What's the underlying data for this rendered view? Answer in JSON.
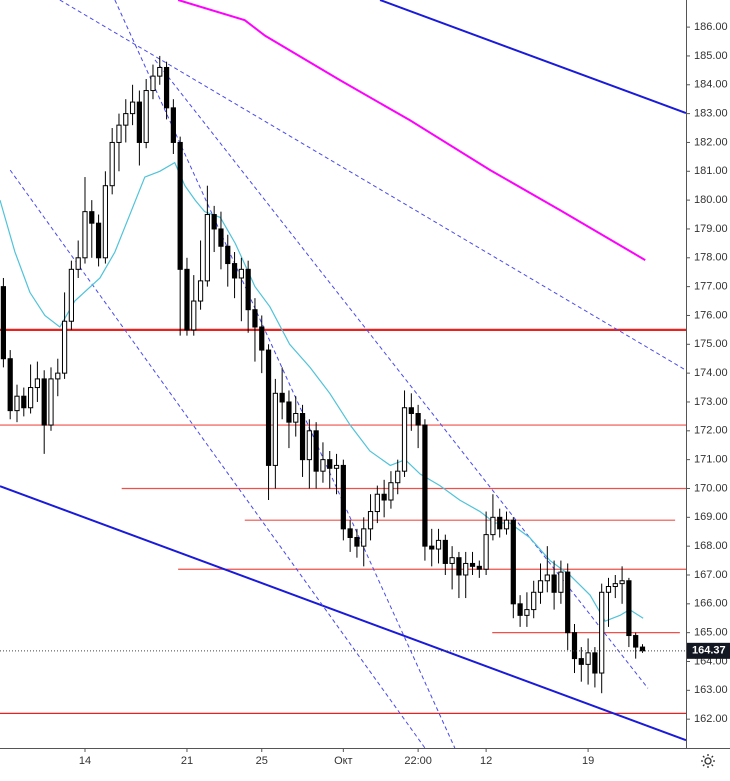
{
  "chart_data": {
    "type": "candlestick",
    "x": [
      0,
      1,
      2,
      3,
      4,
      5,
      6,
      7,
      8,
      9,
      10,
      11,
      12,
      13,
      14,
      15,
      16,
      17,
      18,
      19,
      20,
      21,
      22,
      23,
      24,
      25,
      26,
      27,
      28,
      29,
      30,
      31,
      32,
      33,
      34,
      35,
      36,
      37,
      38,
      39,
      40,
      41,
      42,
      43,
      44,
      45,
      46,
      47,
      48,
      49,
      50,
      51,
      52,
      53,
      54,
      55,
      56,
      57,
      58,
      59,
      60,
      61,
      62,
      63,
      64,
      65,
      66,
      67,
      68,
      69,
      70,
      71,
      72,
      73,
      74,
      75,
      76,
      77,
      78,
      79,
      80,
      81,
      82,
      83,
      84,
      85,
      86,
      87,
      88,
      89,
      90,
      91,
      92,
      93,
      94
    ],
    "open": [
      177.0,
      174.5,
      172.7,
      173.2,
      172.8,
      173.5,
      173.8,
      172.2,
      173.8,
      174.0,
      175.8,
      177.6,
      178.0,
      179.6,
      179.2,
      178.0,
      180.5,
      182.0,
      182.6,
      183.0,
      183.4,
      182.0,
      183.8,
      184.3,
      184.6,
      183.2,
      182.0,
      177.6,
      175.5,
      176.5,
      177.2,
      179.5,
      179.0,
      178.4,
      177.8,
      177.3,
      177.6,
      176.2,
      175.6,
      174.8,
      170.8,
      173.3,
      173.0,
      172.3,
      172.6,
      171.0,
      172.0,
      170.6,
      171.0,
      170.7,
      170.8,
      168.6,
      168.3,
      168.0,
      168.6,
      169.2,
      169.8,
      169.6,
      170.2,
      170.6,
      172.8,
      172.6,
      172.2,
      168.0,
      167.9,
      168.2,
      167.4,
      167.6,
      167.0,
      167.4,
      167.3,
      167.2,
      168.4,
      169.0,
      168.6,
      168.9,
      166.0,
      165.6,
      165.8,
      166.4,
      166.8,
      167.0,
      166.4,
      167.1,
      165.0,
      164.1,
      163.9,
      164.3,
      163.6,
      166.4,
      166.6,
      166.7,
      166.8,
      164.9,
      164.5
    ],
    "high": [
      177.3,
      174.8,
      173.6,
      173.5,
      174.3,
      174.4,
      174.1,
      174.2,
      174.5,
      176.8,
      177.9,
      178.6,
      180.8,
      180.0,
      179.5,
      181.0,
      182.5,
      183.0,
      183.5,
      184.0,
      183.8,
      184.2,
      184.7,
      185.0,
      184.8,
      183.5,
      182.2,
      178.0,
      177.4,
      178.6,
      180.5,
      179.8,
      179.6,
      178.8,
      178.2,
      178.0,
      177.9,
      176.6,
      176.0,
      175.0,
      173.8,
      174.2,
      173.4,
      173.2,
      172.9,
      172.4,
      172.3,
      171.6,
      171.3,
      171.2,
      171.0,
      168.9,
      168.6,
      169.0,
      169.8,
      170.1,
      170.3,
      170.6,
      171.0,
      173.4,
      173.3,
      172.9,
      172.4,
      168.6,
      168.6,
      168.4,
      168.0,
      167.8,
      167.8,
      167.8,
      167.5,
      169.2,
      169.8,
      169.3,
      169.2,
      169.0,
      166.3,
      166.4,
      166.8,
      167.4,
      168.0,
      167.5,
      167.5,
      167.4,
      165.3,
      164.5,
      164.8,
      164.5,
      166.7,
      166.9,
      167.0,
      167.3,
      166.9,
      165.0,
      164.6
    ],
    "low": [
      174.2,
      172.4,
      172.3,
      172.5,
      172.6,
      173.0,
      171.2,
      172.0,
      173.2,
      173.8,
      175.5,
      177.3,
      177.8,
      178.0,
      177.7,
      177.8,
      180.2,
      181.0,
      182.0,
      182.6,
      181.2,
      181.8,
      183.5,
      184.0,
      182.8,
      181.6,
      175.3,
      175.3,
      175.3,
      176.2,
      177.0,
      178.2,
      177.6,
      177.0,
      176.6,
      175.8,
      175.4,
      174.4,
      174.0,
      169.6,
      170.0,
      172.4,
      171.4,
      171.8,
      170.4,
      170.0,
      170.0,
      170.2,
      170.0,
      169.8,
      168.2,
      167.8,
      167.6,
      167.3,
      168.2,
      168.8,
      169.0,
      169.3,
      169.8,
      170.4,
      172.0,
      171.4,
      167.5,
      167.3,
      167.4,
      167.0,
      166.5,
      166.2,
      166.2,
      167.0,
      166.9,
      167.0,
      168.2,
      168.3,
      168.4,
      165.5,
      165.2,
      165.2,
      165.5,
      166.0,
      166.4,
      165.8,
      166.0,
      164.4,
      163.6,
      163.3,
      163.2,
      163.1,
      162.9,
      165.2,
      166.2,
      166.0,
      164.5,
      164.1,
      164.3
    ],
    "close": [
      174.5,
      172.7,
      173.2,
      172.8,
      173.5,
      173.8,
      172.2,
      173.8,
      174.0,
      175.8,
      177.6,
      178.0,
      179.6,
      179.2,
      178.0,
      180.5,
      182.0,
      182.6,
      183.0,
      183.4,
      182.0,
      183.8,
      184.3,
      184.6,
      183.2,
      182.0,
      177.6,
      175.5,
      176.5,
      177.2,
      179.5,
      179.0,
      178.4,
      177.8,
      177.3,
      177.6,
      176.2,
      175.6,
      174.8,
      170.8,
      173.3,
      173.0,
      172.3,
      172.6,
      171.0,
      172.0,
      170.6,
      171.0,
      170.7,
      170.8,
      168.6,
      168.3,
      168.0,
      168.6,
      169.2,
      169.8,
      169.6,
      170.2,
      170.6,
      172.8,
      172.6,
      172.2,
      168.0,
      167.9,
      168.2,
      167.4,
      167.6,
      167.0,
      167.4,
      167.3,
      167.2,
      168.4,
      169.0,
      168.6,
      168.9,
      166.0,
      165.6,
      165.8,
      166.4,
      166.8,
      167.0,
      166.4,
      167.1,
      165.0,
      164.1,
      163.9,
      164.3,
      163.6,
      166.4,
      166.6,
      166.7,
      166.8,
      164.9,
      164.5,
      164.37
    ],
    "up_color": "#ffffff",
    "down_color": "#000000",
    "xlim": [
      -0.5,
      100.4
    ],
    "ylim": [
      161.0,
      186.94
    ],
    "xticks": [
      {
        "value": 12,
        "label": "14"
      },
      {
        "value": 27,
        "label": "21"
      },
      {
        "value": 38,
        "label": "25"
      },
      {
        "value": 50,
        "label": "Окт"
      },
      {
        "value": 61,
        "label": "22:00"
      },
      {
        "value": 71,
        "label": "12"
      },
      {
        "value": 86,
        "label": "19"
      }
    ],
    "yticks": [
      {
        "value": 162,
        "label": "162.00"
      },
      {
        "value": 163,
        "label": "163.00"
      },
      {
        "value": 164,
        "label": "164.00"
      },
      {
        "value": 165,
        "label": "165.00"
      },
      {
        "value": 166,
        "label": "166.00"
      },
      {
        "value": 167,
        "label": "167.00"
      },
      {
        "value": 168,
        "label": "168.00"
      },
      {
        "value": 169,
        "label": "169.00"
      },
      {
        "value": 170,
        "label": "170.00"
      },
      {
        "value": 171,
        "label": "171.00"
      },
      {
        "value": 172,
        "label": "172.00"
      },
      {
        "value": 173,
        "label": "173.00"
      },
      {
        "value": 174,
        "label": "174.00"
      },
      {
        "value": 175,
        "label": "175.00"
      },
      {
        "value": 176,
        "label": "176.00"
      },
      {
        "value": 177,
        "label": "177.00"
      },
      {
        "value": 178,
        "label": "178.00"
      },
      {
        "value": 179,
        "label": "179.00"
      },
      {
        "value": 180,
        "label": "180.00"
      },
      {
        "value": 181,
        "label": "181.00"
      },
      {
        "value": 182,
        "label": "182.00"
      },
      {
        "value": 183,
        "label": "183.00"
      },
      {
        "value": 184,
        "label": "184.00"
      },
      {
        "value": 185,
        "label": "185.00"
      },
      {
        "value": 186,
        "label": "186.00"
      }
    ],
    "last_price": 164.37,
    "overlays": [
      {
        "color": "#4fc3d9",
        "x": [
          -0.5,
          1.7,
          3.9,
          6.1,
          8.3,
          10.5,
          14.2,
          16.4,
          18.6,
          20.8,
          23.0,
          25.2,
          26.7,
          28.2,
          29.6,
          31.9,
          34.1,
          37.0,
          39.2,
          42.1,
          45.1,
          48.0,
          51.0,
          53.9,
          56.9,
          59.1,
          61.3,
          64.2,
          67.1,
          70.1,
          72.3,
          74.5,
          77.4,
          80.4,
          83.3,
          86.3,
          88.5,
          90.7,
          92.1,
          94.1
        ],
        "values": [
          180.0,
          178.2,
          176.8,
          176.0,
          175.6,
          176.5,
          177.3,
          178.2,
          179.5,
          180.8,
          181.0,
          181.3,
          180.5,
          180.0,
          179.6,
          179.4,
          178.5,
          177.0,
          176.3,
          175.0,
          174.2,
          173.3,
          172.2,
          171.3,
          170.8,
          171.0,
          170.5,
          170.1,
          169.6,
          169.2,
          168.8,
          168.8,
          168.3,
          167.5,
          167.0,
          166.3,
          165.4,
          165.6,
          165.8,
          165.5
        ]
      },
      {
        "color": "#ff00ff",
        "x": [
          25.7,
          35.5,
          38.5,
          49.5,
          59.8,
          71.6,
          81.9,
          94.4
        ],
        "values": [
          186.94,
          186.24,
          185.7,
          184.16,
          182.77,
          181.04,
          179.65,
          177.92
        ]
      }
    ],
    "trendlines": [
      {
        "color": "#1a1adb",
        "style": "solid",
        "x": [
          55.4,
          100.4
        ],
        "values": [
          186.94,
          183.02
        ]
      },
      {
        "color": "#1a1adb",
        "style": "solid",
        "x": [
          -0.5,
          100.4
        ],
        "values": [
          170.08,
          161.27
        ]
      },
      {
        "color": "#4a4aee",
        "style": "dashed",
        "x": [
          8.3,
          100.4
        ],
        "values": [
          186.94,
          174.1
        ]
      },
      {
        "color": "#4a4aee",
        "style": "dashed",
        "x": [
          16.4,
          66.4
        ],
        "values": [
          186.94,
          161.0
        ]
      },
      {
        "color": "#4a4aee",
        "style": "dashed",
        "x": [
          1.0,
          62.0
        ],
        "values": [
          181.04,
          161.0
        ]
      },
      {
        "color": "#4a4aee",
        "style": "dashed",
        "x": [
          22.3,
          94.8
        ],
        "values": [
          184.86,
          163.07
        ]
      }
    ],
    "levels": [
      {
        "value": 175.5,
        "x": [
          -0.5,
          100.4
        ],
        "color": "#e8231f",
        "bold": true
      },
      {
        "value": 172.2,
        "x": [
          -0.5,
          100.4
        ],
        "color": "#f0504a",
        "bold": false
      },
      {
        "value": 170.0,
        "x": [
          17.4,
          100.4
        ],
        "color": "#f0504a",
        "bold": false
      },
      {
        "value": 168.9,
        "x": [
          35.5,
          98.8
        ],
        "color": "#f0504a",
        "bold": false
      },
      {
        "value": 167.2,
        "x": [
          25.7,
          100.4
        ],
        "color": "#f0504a",
        "bold": false
      },
      {
        "value": 165.0,
        "x": [
          71.9,
          99.5
        ],
        "color": "#f0504a",
        "bold": false
      },
      {
        "value": 162.2,
        "x": [
          -0.5,
          100.4
        ],
        "color": "#e8231f",
        "bold": false
      }
    ]
  }
}
